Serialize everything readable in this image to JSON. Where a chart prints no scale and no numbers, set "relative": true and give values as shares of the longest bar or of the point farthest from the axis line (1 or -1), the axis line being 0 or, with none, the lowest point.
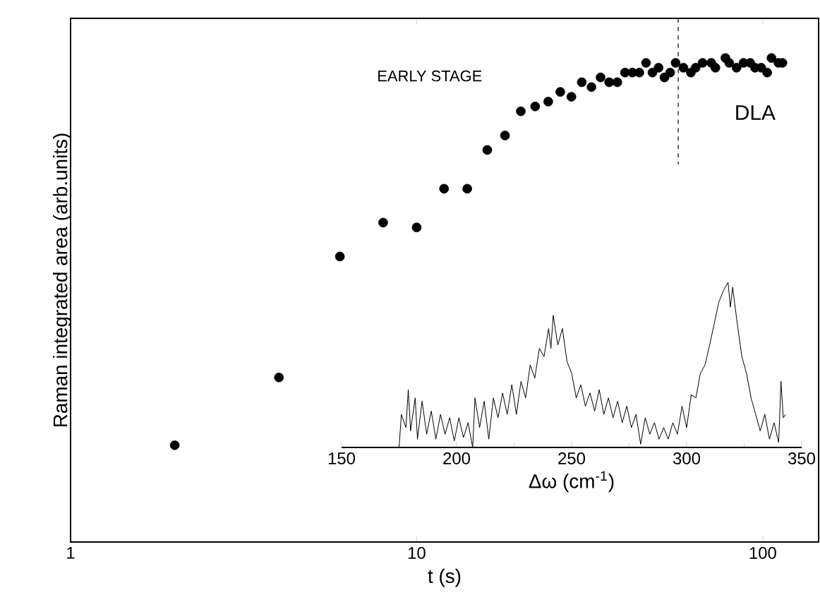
{
  "chart_data": [
    {
      "type": "scatter",
      "xlabel": "t (s)",
      "ylabel": "Raman integrated area (arb.units)",
      "relative": true,
      "log": "x",
      "xlim": [
        1,
        145
      ],
      "xticks": [
        1,
        10,
        100
      ],
      "x": [
        2,
        4,
        6,
        8,
        10,
        12,
        14,
        16,
        18,
        20,
        22,
        24,
        26,
        28,
        30,
        32,
        34,
        36,
        38,
        40,
        42,
        44,
        46,
        48,
        50,
        52,
        54,
        56,
        59,
        62,
        64,
        67,
        71,
        73,
        78,
        80,
        84,
        88,
        92,
        95,
        99,
        103,
        106,
        111,
        114
      ],
      "series": [
        {
          "color": "#000000",
          "values": [
            0.2,
            0.34,
            0.59,
            0.66,
            0.65,
            0.73,
            0.73,
            0.81,
            0.84,
            0.89,
            0.9,
            0.91,
            0.93,
            0.92,
            0.95,
            0.94,
            0.96,
            0.95,
            0.95,
            0.97,
            0.97,
            0.97,
            0.99,
            0.97,
            0.98,
            0.96,
            0.97,
            0.99,
            0.98,
            0.97,
            0.98,
            0.99,
            0.99,
            0.98,
            1.0,
            0.99,
            0.98,
            0.99,
            0.99,
            0.98,
            0.98,
            0.97,
            1.0,
            0.99,
            0.99
          ]
        }
      ],
      "ref_lines": [
        {
          "axis": "x",
          "value": 57,
          "line_style": "dashed",
          "color": "#000000"
        }
      ],
      "annotations": [
        "EARLY STAGE",
        "DLA"
      ]
    },
    {
      "type": "line",
      "xlabel": "Δω (cm$^{-1}$)",
      "relative": true,
      "xlim": [
        150,
        350
      ],
      "xticks": [
        150,
        200,
        250,
        300,
        350
      ],
      "x": [
        175,
        176,
        178,
        179,
        180,
        182,
        183,
        185,
        187,
        189,
        191,
        193,
        195,
        197,
        199,
        201,
        203,
        205,
        207,
        208,
        210,
        212,
        214,
        216,
        218,
        220,
        222,
        224,
        226,
        228,
        230,
        232,
        234,
        236,
        238,
        240,
        241,
        242,
        244,
        246,
        248,
        250,
        252,
        254,
        256,
        258,
        260,
        262,
        264,
        266,
        268,
        270,
        272,
        274,
        276,
        278,
        280,
        282,
        284,
        286,
        288,
        290,
        292,
        294,
        296,
        298,
        300,
        302,
        304,
        306,
        308,
        310,
        312,
        314,
        316,
        318,
        319,
        320,
        322,
        324,
        326,
        328,
        330,
        332,
        334,
        336,
        338,
        340,
        341,
        342,
        343
      ],
      "series": [
        {
          "color": "#000000",
          "values": [
            0.0,
            0.2,
            0.12,
            0.35,
            0.1,
            0.3,
            0.05,
            0.28,
            0.08,
            0.22,
            0.05,
            0.2,
            0.08,
            0.18,
            0.04,
            0.18,
            0.06,
            0.15,
            0.0,
            0.3,
            0.12,
            0.28,
            0.05,
            0.3,
            0.18,
            0.33,
            0.2,
            0.38,
            0.2,
            0.4,
            0.3,
            0.5,
            0.42,
            0.6,
            0.55,
            0.72,
            0.6,
            0.8,
            0.62,
            0.72,
            0.52,
            0.45,
            0.3,
            0.38,
            0.25,
            0.33,
            0.22,
            0.35,
            0.2,
            0.3,
            0.18,
            0.28,
            0.15,
            0.25,
            0.12,
            0.2,
            0.02,
            0.18,
            0.08,
            0.15,
            0.05,
            0.12,
            0.05,
            0.15,
            0.08,
            0.25,
            0.12,
            0.32,
            0.3,
            0.45,
            0.5,
            0.62,
            0.75,
            0.88,
            0.95,
            1.0,
            0.85,
            0.97,
            0.75,
            0.55,
            0.45,
            0.3,
            0.2,
            0.1,
            0.2,
            0.05,
            0.15,
            0.03,
            0.4,
            0.18,
            0.2
          ]
        }
      ]
    }
  ]
}
